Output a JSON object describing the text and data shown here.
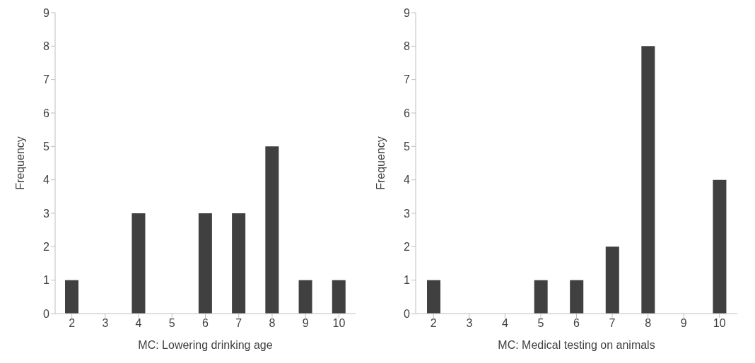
{
  "chart_data": [
    {
      "type": "bar",
      "xlabel": "MC: Lowering drinking age",
      "ylabel": "Frequency",
      "categories": [
        "2",
        "3",
        "4",
        "5",
        "6",
        "7",
        "8",
        "9",
        "10"
      ],
      "values": [
        1,
        0,
        3,
        0,
        3,
        3,
        5,
        1,
        1
      ],
      "color": "#404040",
      "ylim": [
        0,
        9
      ],
      "yticks": [
        0,
        1,
        2,
        3,
        4,
        5,
        6,
        7,
        8,
        9
      ],
      "grid": false,
      "legend": false
    },
    {
      "type": "bar",
      "xlabel": "MC: Medical testing on animals",
      "ylabel": "Frequency",
      "categories": [
        "2",
        "3",
        "4",
        "5",
        "6",
        "7",
        "8",
        "9",
        "10"
      ],
      "values": [
        1,
        0,
        0,
        1,
        1,
        2,
        8,
        0,
        4
      ],
      "color": "#404040",
      "ylim": [
        0,
        9
      ],
      "yticks": [
        0,
        1,
        2,
        3,
        4,
        5,
        6,
        7,
        8,
        9
      ],
      "grid": false,
      "legend": false
    }
  ]
}
